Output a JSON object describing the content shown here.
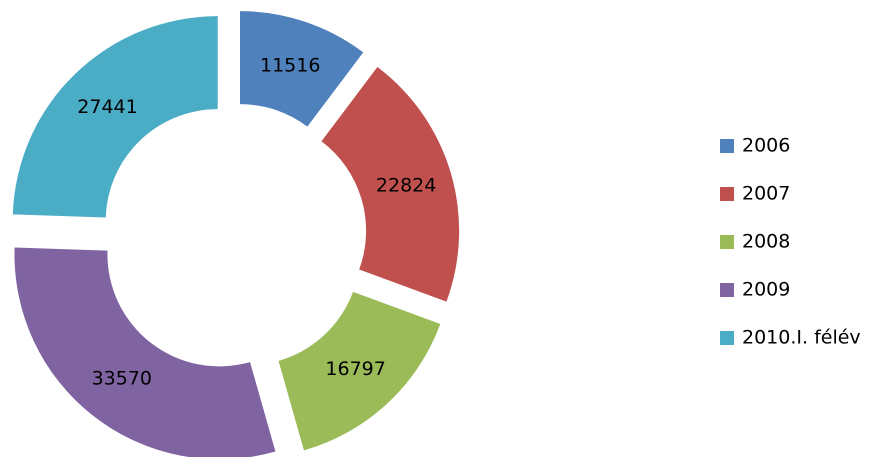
{
  "chart_data": {
    "type": "doughnut",
    "exploded": true,
    "categories": [
      "2006",
      "2007",
      "2008",
      "2009",
      "2010.I. félév"
    ],
    "values": [
      11516,
      22824,
      16797,
      33570,
      27441
    ],
    "colors": [
      "#4f81bd",
      "#c0504d",
      "#9bbb59",
      "#8064a2",
      "#4bacc6"
    ],
    "data_labels": true,
    "legend": "right"
  }
}
